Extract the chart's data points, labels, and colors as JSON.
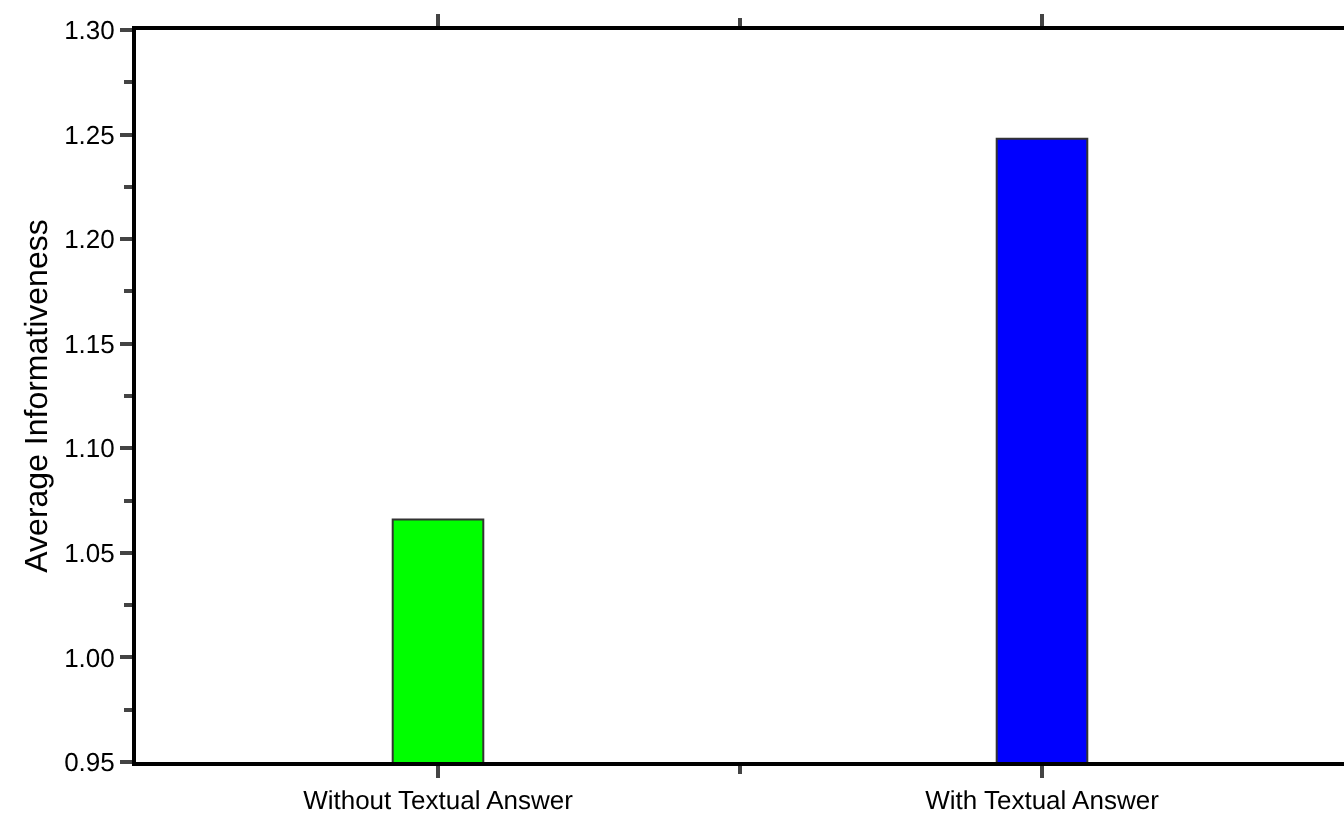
{
  "chart_data": {
    "type": "bar",
    "ylabel": "Average Informativeness",
    "categories": [
      "Without Textual Answer",
      "With Textual Answer"
    ],
    "values": [
      1.066,
      1.248
    ],
    "colors": [
      "#00ff00",
      "#0000ff"
    ],
    "ylim": [
      0.95,
      1.3
    ],
    "yticks": [
      {
        "value": 0.95,
        "label": "0.95"
      },
      {
        "value": 1,
        "label": "1.00"
      },
      {
        "value": 1.05,
        "label": "1.05"
      },
      {
        "value": 1.1,
        "label": "1.10"
      },
      {
        "value": 1.15,
        "label": "1.15"
      },
      {
        "value": 1.2,
        "label": "1.20"
      },
      {
        "value": 1.25,
        "label": "1.25"
      },
      {
        "value": 1.3,
        "label": "1.30"
      }
    ],
    "grid": false
  }
}
